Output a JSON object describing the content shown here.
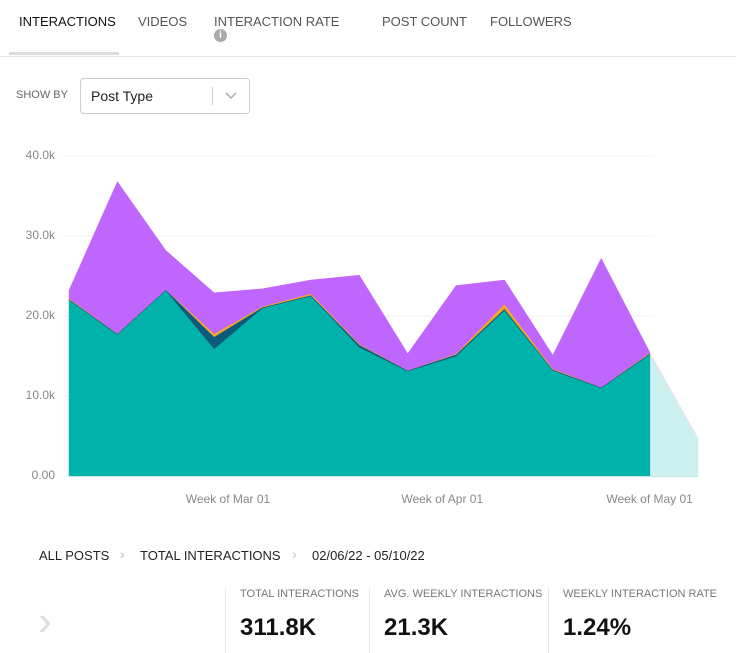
{
  "tabs": [
    "INTERACTIONS",
    "VIDEOS",
    "INTERACTION RATE",
    "POST COUNT",
    "FOLLOWERS"
  ],
  "show_by": {
    "label": "SHOW BY",
    "value": "Post Type"
  },
  "chart_data": {
    "type": "stacked_area",
    "x": [
      0,
      7,
      14,
      21,
      28,
      35,
      42,
      49,
      56,
      63,
      70,
      77,
      84,
      91
    ],
    "xlim": [
      0,
      91
    ],
    "xticks": [
      {
        "value": 23,
        "label": "Week of Mar 01"
      },
      {
        "value": 54,
        "label": "Week of Apr 01"
      },
      {
        "value": 84,
        "label": "Week of May 01"
      }
    ],
    "ylim": [
      0,
      40000
    ],
    "yticks": [
      {
        "value": 0,
        "label": "0.00"
      },
      {
        "value": 10000,
        "label": "10.0k"
      },
      {
        "value": 20000,
        "label": "20.0k"
      },
      {
        "value": 30000,
        "label": "30.0k"
      },
      {
        "value": 40000,
        "label": "40.0k"
      }
    ],
    "grid": true,
    "series": [
      {
        "color": "#00b2a9",
        "values": [
          22000,
          17700,
          23200,
          15900,
          21000,
          22500,
          16100,
          13100,
          15000,
          20700,
          13200,
          11000,
          15200,
          4700
        ]
      },
      {
        "color": "#0e5a7a",
        "values": [
          100,
          100,
          100,
          1500,
          100,
          100,
          300,
          100,
          200,
          200,
          100,
          100,
          100,
          0
        ]
      },
      {
        "color": "#f5a623",
        "values": [
          100,
          0,
          0,
          400,
          100,
          200,
          100,
          0,
          100,
          600,
          100,
          0,
          100,
          0
        ]
      },
      {
        "color": "#bf66ff",
        "values": [
          1000,
          19000,
          4900,
          5100,
          2200,
          1700,
          8600,
          2100,
          8500,
          3000,
          1700,
          16100,
          100,
          100
        ]
      }
    ]
  },
  "breadcrumbs": [
    "ALL POSTS",
    "TOTAL INTERACTIONS",
    "02/06/22 - 05/10/22"
  ],
  "stats": [
    {
      "label": "TOTAL INTERACTIONS",
      "value": "311.8K"
    },
    {
      "label": "AVG. WEEKLY INTERACTIONS",
      "value": "21.3K"
    },
    {
      "label": "WEEKLY INTERACTION RATE",
      "value": "1.24%"
    }
  ]
}
